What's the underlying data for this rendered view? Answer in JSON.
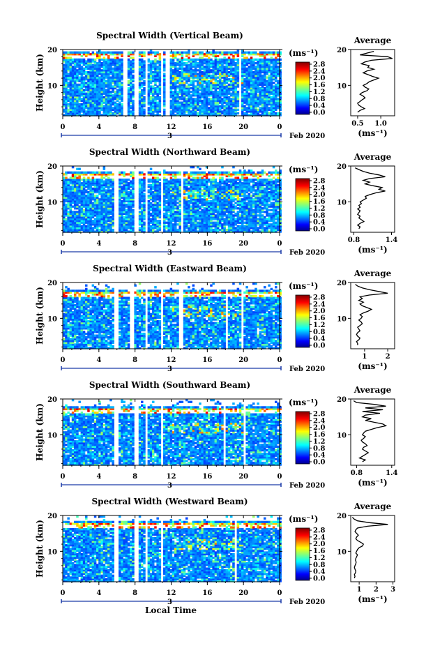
{
  "figure": {
    "xlabel": "Local Time",
    "date_label": "Feb 2020",
    "day_label": "3"
  },
  "chart_data": [
    {
      "type": "heatmap",
      "title": "Spectral Width (Vertical Beam)",
      "xlabel": "Local Time",
      "ylabel": "Height (km)",
      "x_ticks": [
        "0",
        "4",
        "8",
        "12",
        "16",
        "20",
        "0"
      ],
      "xlim": [
        0,
        24
      ],
      "y_ticks": [
        "20",
        "10"
      ],
      "ylim": [
        1.5,
        20
      ],
      "colorbar": {
        "unit": "(ms⁻¹)",
        "ticks": [
          "2.8",
          "2.4",
          "2.0",
          "1.6",
          "1.2",
          "0.8",
          "0.4",
          "0.0"
        ],
        "range": [
          0,
          2.8
        ]
      },
      "gap_hours": [
        [
          6.6,
          7.0
        ],
        [
          7.9,
          8.3
        ],
        [
          8.9,
          9.3
        ],
        [
          10.7,
          11.1
        ],
        [
          11.3,
          11.7
        ],
        [
          14.1,
          14.3
        ],
        [
          19.5,
          19.7
        ]
      ],
      "bright_band_km": 18,
      "average": {
        "title": "Average",
        "xlabel": "(ms⁻¹)",
        "x_ticks": [
          "0.5",
          "1.0"
        ],
        "xlim": [
          0.35,
          1.3
        ],
        "y_ticks": [
          "20",
          "10"
        ],
        "profile": [
          [
            0.85,
            19.5
          ],
          [
            0.7,
            19.0
          ],
          [
            0.55,
            18.5
          ],
          [
            1.15,
            18.0
          ],
          [
            1.25,
            17.5
          ],
          [
            0.8,
            17.0
          ],
          [
            0.65,
            16.5
          ],
          [
            0.58,
            16.0
          ],
          [
            0.75,
            15.5
          ],
          [
            0.72,
            15.0
          ],
          [
            0.85,
            14.5
          ],
          [
            0.7,
            14.0
          ],
          [
            0.62,
            13.5
          ],
          [
            0.72,
            13.0
          ],
          [
            0.82,
            12.5
          ],
          [
            0.95,
            12.0
          ],
          [
            0.85,
            11.5
          ],
          [
            0.75,
            11.0
          ],
          [
            0.7,
            10.5
          ],
          [
            0.62,
            10.0
          ],
          [
            0.66,
            9.5
          ],
          [
            0.74,
            9.0
          ],
          [
            0.7,
            8.5
          ],
          [
            0.6,
            8.0
          ],
          [
            0.55,
            7.5
          ],
          [
            0.62,
            7.0
          ],
          [
            0.66,
            6.5
          ],
          [
            0.6,
            6.0
          ],
          [
            0.55,
            5.5
          ],
          [
            0.5,
            5.0
          ],
          [
            0.52,
            4.5
          ],
          [
            0.58,
            4.0
          ],
          [
            0.65,
            3.5
          ],
          [
            0.55,
            3.0
          ],
          [
            0.5,
            2.5
          ]
        ]
      }
    },
    {
      "type": "heatmap",
      "title": "Spectral Width (Northward Beam)",
      "xlabel": "Local Time",
      "ylabel": "Height (km)",
      "x_ticks": [
        "0",
        "4",
        "8",
        "12",
        "16",
        "20",
        "0"
      ],
      "xlim": [
        0,
        24
      ],
      "y_ticks": [
        "20",
        "10"
      ],
      "ylim": [
        1.5,
        20
      ],
      "colorbar": {
        "unit": "(ms⁻¹)",
        "ticks": [
          "2.8",
          "2.4",
          "2.0",
          "1.6",
          "1.2",
          "0.8",
          "0.4",
          "0.0"
        ],
        "range": [
          0,
          2.8
        ]
      },
      "gap_hours": [
        [
          5.6,
          6.0
        ],
        [
          7.9,
          8.3
        ],
        [
          8.9,
          9.3
        ],
        [
          10.7,
          11.1
        ],
        [
          13.0,
          13.2
        ]
      ],
      "bright_band_km": 17,
      "average": {
        "title": "Average",
        "xlabel": "(ms⁻¹)",
        "x_ticks": [
          "0.8",
          "1.4"
        ],
        "xlim": [
          0.75,
          1.45
        ],
        "y_ticks": [
          "20",
          "10"
        ],
        "profile": [
          [
            0.82,
            19.5
          ],
          [
            0.88,
            19.0
          ],
          [
            0.95,
            18.5
          ],
          [
            1.05,
            18.0
          ],
          [
            1.2,
            17.5
          ],
          [
            1.3,
            17.0
          ],
          [
            1.05,
            16.5
          ],
          [
            0.95,
            16.0
          ],
          [
            1.05,
            15.5
          ],
          [
            0.98,
            15.0
          ],
          [
            1.1,
            14.5
          ],
          [
            1.25,
            14.0
          ],
          [
            1.2,
            13.5
          ],
          [
            1.3,
            13.0
          ],
          [
            1.15,
            12.5
          ],
          [
            1.05,
            12.0
          ],
          [
            0.98,
            11.5
          ],
          [
            1.0,
            11.0
          ],
          [
            0.95,
            10.5
          ],
          [
            0.9,
            10.0
          ],
          [
            0.92,
            9.5
          ],
          [
            0.88,
            9.0
          ],
          [
            0.9,
            8.5
          ],
          [
            0.86,
            8.0
          ],
          [
            0.9,
            7.5
          ],
          [
            0.88,
            7.0
          ],
          [
            0.86,
            6.5
          ],
          [
            0.9,
            6.0
          ],
          [
            0.88,
            5.5
          ],
          [
            0.92,
            5.0
          ],
          [
            0.96,
            4.5
          ],
          [
            0.9,
            4.0
          ],
          [
            0.86,
            3.5
          ],
          [
            0.9,
            3.0
          ],
          [
            0.88,
            2.5
          ]
        ]
      }
    },
    {
      "type": "heatmap",
      "title": "Spectral Width (Eastward Beam)",
      "xlabel": "Local Time",
      "ylabel": "Height (km)",
      "x_ticks": [
        "0",
        "4",
        "8",
        "12",
        "16",
        "20",
        "0"
      ],
      "xlim": [
        0,
        24
      ],
      "y_ticks": [
        "20",
        "10"
      ],
      "ylim": [
        1.5,
        20
      ],
      "colorbar": {
        "unit": "(ms⁻¹)",
        "ticks": [
          "2.8",
          "2.4",
          "2.0",
          "1.6",
          "1.2",
          "0.8",
          "0.4",
          "0.0"
        ],
        "range": [
          0,
          2.8
        ]
      },
      "gap_hours": [
        [
          5.6,
          6.0
        ],
        [
          7.3,
          7.7
        ],
        [
          8.9,
          9.3
        ],
        [
          10.7,
          11.1
        ],
        [
          12.8,
          13.2
        ],
        [
          18.0,
          18.2
        ],
        [
          19.6,
          19.8
        ]
      ],
      "bright_band_km": 16.5,
      "average": {
        "title": "Average",
        "xlabel": "(ms⁻¹)",
        "x_ticks": [
          "1",
          "2"
        ],
        "xlim": [
          0.4,
          2.3
        ],
        "y_ticks": [
          "20",
          "10"
        ],
        "profile": [
          [
            0.6,
            19.5
          ],
          [
            0.7,
            19.0
          ],
          [
            0.9,
            18.5
          ],
          [
            1.2,
            18.0
          ],
          [
            1.6,
            17.5
          ],
          [
            2.0,
            17.0
          ],
          [
            1.2,
            16.5
          ],
          [
            0.8,
            16.0
          ],
          [
            0.9,
            15.5
          ],
          [
            0.75,
            15.0
          ],
          [
            0.95,
            14.5
          ],
          [
            0.8,
            14.0
          ],
          [
            0.9,
            13.5
          ],
          [
            1.1,
            13.0
          ],
          [
            1.3,
            12.5
          ],
          [
            1.15,
            12.0
          ],
          [
            0.95,
            11.5
          ],
          [
            0.8,
            11.0
          ],
          [
            0.9,
            10.5
          ],
          [
            0.85,
            10.0
          ],
          [
            0.75,
            9.5
          ],
          [
            0.85,
            9.0
          ],
          [
            0.9,
            8.5
          ],
          [
            0.8,
            8.0
          ],
          [
            0.7,
            7.5
          ],
          [
            0.75,
            7.0
          ],
          [
            0.8,
            6.5
          ],
          [
            0.7,
            6.0
          ],
          [
            0.65,
            5.5
          ],
          [
            0.7,
            5.0
          ],
          [
            0.8,
            4.5
          ],
          [
            0.75,
            4.0
          ],
          [
            0.65,
            3.5
          ],
          [
            0.7,
            3.0
          ],
          [
            0.7,
            2.5
          ]
        ]
      }
    },
    {
      "type": "heatmap",
      "title": "Spectral Width (Southward Beam)",
      "xlabel": "Local Time",
      "ylabel": "Height (km)",
      "x_ticks": [
        "0",
        "4",
        "8",
        "12",
        "16",
        "20",
        "0"
      ],
      "xlim": [
        0,
        24
      ],
      "y_ticks": [
        "20",
        "10"
      ],
      "ylim": [
        1.5,
        20
      ],
      "colorbar": {
        "unit": "(ms⁻¹)",
        "ticks": [
          "2.8",
          "2.4",
          "2.0",
          "1.6",
          "1.2",
          "0.8",
          "0.4",
          "0.0"
        ],
        "range": [
          0,
          2.8
        ]
      },
      "gap_hours": [
        [
          5.6,
          6.0
        ],
        [
          7.9,
          8.3
        ],
        [
          8.9,
          9.3
        ],
        [
          10.7,
          11.1
        ],
        [
          11.4,
          11.6
        ],
        [
          17.6,
          17.8
        ],
        [
          20.0,
          20.2
        ]
      ],
      "bright_band_km": 16.5,
      "average": {
        "title": "Average",
        "xlabel": "(ms⁻¹)",
        "x_ticks": [
          "0.8",
          "1.4"
        ],
        "xlim": [
          0.7,
          1.45
        ],
        "y_ticks": [
          "20",
          "10"
        ],
        "profile": [
          [
            0.75,
            19.5
          ],
          [
            0.8,
            19.0
          ],
          [
            1.1,
            18.5
          ],
          [
            1.3,
            18.0
          ],
          [
            0.95,
            17.5
          ],
          [
            1.25,
            17.0
          ],
          [
            0.9,
            16.5
          ],
          [
            1.2,
            16.0
          ],
          [
            0.95,
            15.5
          ],
          [
            0.9,
            15.0
          ],
          [
            1.05,
            14.5
          ],
          [
            0.95,
            14.0
          ],
          [
            1.1,
            13.5
          ],
          [
            1.25,
            13.0
          ],
          [
            1.3,
            12.5
          ],
          [
            1.15,
            12.0
          ],
          [
            1.05,
            11.5
          ],
          [
            0.95,
            11.0
          ],
          [
            0.92,
            10.5
          ],
          [
            0.9,
            10.0
          ],
          [
            0.95,
            9.5
          ],
          [
            0.92,
            9.0
          ],
          [
            0.88,
            8.5
          ],
          [
            0.9,
            8.0
          ],
          [
            0.95,
            7.5
          ],
          [
            0.98,
            7.0
          ],
          [
            0.92,
            6.5
          ],
          [
            0.9,
            6.0
          ],
          [
            0.95,
            5.5
          ],
          [
            1.0,
            5.0
          ],
          [
            0.95,
            4.5
          ],
          [
            0.9,
            4.0
          ],
          [
            0.85,
            3.5
          ],
          [
            0.95,
            3.0
          ],
          [
            0.9,
            2.5
          ]
        ]
      }
    },
    {
      "type": "heatmap",
      "title": "Spectral Width (Westward Beam)",
      "xlabel": "Local Time",
      "ylabel": "Height (km)",
      "x_ticks": [
        "0",
        "4",
        "8",
        "12",
        "16",
        "20",
        "0"
      ],
      "xlim": [
        0,
        24
      ],
      "y_ticks": [
        "20",
        "10"
      ],
      "ylim": [
        1.5,
        20
      ],
      "colorbar": {
        "unit": "(ms⁻¹)",
        "ticks": [
          "2.8",
          "2.4",
          "2.0",
          "1.6",
          "1.2",
          "0.8",
          "0.4",
          "0.0"
        ],
        "range": [
          0,
          2.8
        ]
      },
      "gap_hours": [
        [
          5.6,
          6.0
        ],
        [
          7.9,
          8.3
        ],
        [
          8.9,
          9.3
        ],
        [
          10.7,
          11.1
        ],
        [
          11.4,
          11.6
        ],
        [
          18.9,
          19.2
        ]
      ],
      "bright_band_km": 17,
      "average": {
        "title": "Average",
        "xlabel": "(ms⁻¹)",
        "x_ticks": [
          "1",
          "2",
          "3"
        ],
        "xlim": [
          0.5,
          3.1
        ],
        "y_ticks": [
          "20",
          "10"
        ],
        "profile": [
          [
            0.6,
            19.5
          ],
          [
            0.7,
            19.0
          ],
          [
            0.9,
            18.5
          ],
          [
            1.6,
            18.0
          ],
          [
            2.7,
            17.5
          ],
          [
            1.5,
            17.0
          ],
          [
            0.9,
            16.5
          ],
          [
            0.8,
            16.0
          ],
          [
            0.75,
            15.5
          ],
          [
            0.85,
            15.0
          ],
          [
            0.95,
            14.5
          ],
          [
            0.85,
            14.0
          ],
          [
            0.8,
            13.5
          ],
          [
            0.9,
            13.0
          ],
          [
            1.1,
            12.5
          ],
          [
            1.25,
            12.0
          ],
          [
            1.2,
            11.5
          ],
          [
            1.0,
            11.0
          ],
          [
            0.9,
            10.5
          ],
          [
            0.85,
            10.0
          ],
          [
            0.8,
            9.5
          ],
          [
            0.9,
            9.0
          ],
          [
            0.85,
            8.5
          ],
          [
            0.8,
            8.0
          ],
          [
            0.78,
            7.5
          ],
          [
            0.82,
            7.0
          ],
          [
            0.8,
            6.5
          ],
          [
            0.75,
            6.0
          ],
          [
            0.72,
            5.5
          ],
          [
            0.75,
            5.0
          ],
          [
            0.8,
            4.5
          ],
          [
            0.78,
            4.0
          ],
          [
            0.72,
            3.5
          ],
          [
            0.75,
            3.0
          ],
          [
            0.72,
            2.5
          ]
        ]
      }
    }
  ]
}
